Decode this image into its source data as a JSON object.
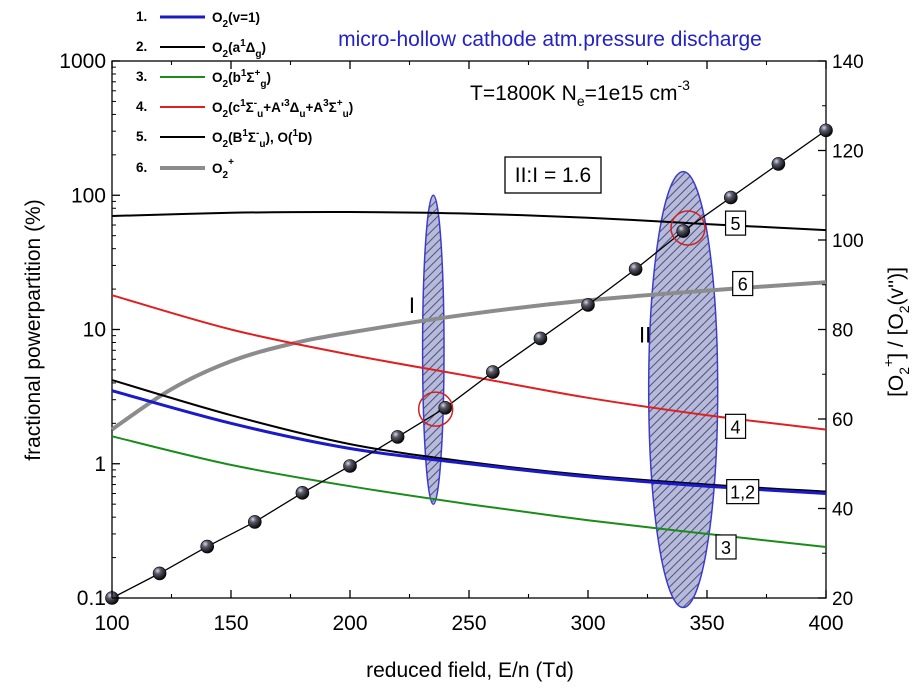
{
  "chart_data": {
    "type": "line",
    "title": "micro-hollow cathode atm.pressure discharge",
    "conditions": {
      "prefix": "T=1800K N",
      "sub": "e",
      "mid": "=1e15 cm",
      "sup": "-3"
    },
    "ratio_box": "II:I = 1.6",
    "xlabel": "reduced field, E/n (Td)",
    "ylabel_left": "fractional powerpartition (%)",
    "ylabel_right": "[O2+] / [O2(v'')]",
    "xlim": [
      100,
      400
    ],
    "ylim_left": [
      0.1,
      1000
    ],
    "ylim_right": [
      20,
      140
    ],
    "left_scale": "log",
    "grid": false,
    "x_ticks": [
      "100",
      "150",
      "200",
      "250",
      "300",
      "350",
      "400"
    ],
    "y_left_ticks": [
      "0.1",
      "1",
      "10",
      "100",
      "1000"
    ],
    "y_right_ticks": [
      "20",
      "40",
      "60",
      "80",
      "100",
      "120",
      "140"
    ],
    "legend_position": "top-left",
    "series": [
      {
        "id": "s1",
        "legend_num": "1.",
        "name": "O2(v=1)",
        "color": "#1a1ac8",
        "width": 3,
        "x": [
          100,
          150,
          200,
          250,
          300,
          350,
          400
        ],
        "y": [
          3.5,
          2.0,
          1.3,
          1.0,
          0.8,
          0.68,
          0.6
        ]
      },
      {
        "id": "s2",
        "legend_num": "2.",
        "name": "O2(a1Δg)",
        "color": "#000000",
        "width": 2,
        "x": [
          100,
          150,
          200,
          250,
          300,
          350,
          400
        ],
        "y": [
          3.5,
          2.0,
          1.3,
          1.0,
          0.8,
          0.69,
          0.61
        ]
      },
      {
        "id": "s3",
        "legend_num": "3.",
        "name": "O2(b1Σ+g)",
        "color": "#1a8c1a",
        "width": 2,
        "x": [
          100,
          150,
          200,
          250,
          300,
          350,
          400
        ],
        "y": [
          1.6,
          0.98,
          0.68,
          0.5,
          0.38,
          0.3,
          0.24
        ]
      },
      {
        "id": "s4",
        "legend_num": "4.",
        "name": "O2(c1Σ-u+A'3Δu+A3Σ+u)",
        "color": "#e02020",
        "width": 2,
        "x": [
          100,
          150,
          200,
          250,
          300,
          350,
          400
        ],
        "y": [
          18,
          10,
          6.5,
          4.5,
          3.1,
          2.3,
          1.8
        ]
      },
      {
        "id": "s5a",
        "legend_num": "5.",
        "name": "O2(B1Σ-u), O(1D)",
        "color": "#000000",
        "width": 2,
        "x": [
          100,
          150,
          200,
          250,
          300,
          350,
          400
        ],
        "y": [
          70,
          74,
          75,
          73,
          68,
          61,
          55
        ]
      },
      {
        "id": "s5b",
        "legend_num": "",
        "name": "",
        "color": "#000000",
        "width": 2,
        "x": [
          100,
          150,
          200,
          250,
          300,
          350,
          400
        ],
        "y": [
          4.2,
          2.3,
          1.4,
          1.03,
          0.82,
          0.7,
          0.62
        ]
      },
      {
        "id": "s6",
        "legend_num": "6.",
        "name": "O2+",
        "color": "#8c8c8c",
        "width": 4,
        "x": [
          100,
          125,
          150,
          175,
          200,
          250,
          300,
          350,
          400
        ],
        "y": [
          1.8,
          3.6,
          5.8,
          7.8,
          9.5,
          13,
          16.5,
          19.5,
          22.5
        ]
      }
    ],
    "ratio_points": {
      "axis": "right",
      "x": [
        100,
        120,
        140,
        160,
        180,
        200,
        220,
        240,
        260,
        280,
        300,
        320,
        340,
        360,
        380,
        400
      ],
      "y": [
        20,
        25.5,
        31.5,
        37,
        43.5,
        49.5,
        56,
        62.5,
        70.5,
        78,
        85.5,
        93.5,
        102,
        109.5,
        117,
        124.5
      ]
    },
    "curve_labels": [
      {
        "id": "lbl5",
        "text": "5",
        "x": 362,
        "y": 62
      },
      {
        "id": "lbl6",
        "text": "6",
        "x": 365,
        "y": 22
      },
      {
        "id": "lbl4",
        "text": "4",
        "x": 362,
        "y": 1.9
      },
      {
        "id": "lbl12",
        "text": "1,2",
        "x": 365,
        "y": 0.62
      },
      {
        "id": "lbl3",
        "text": "3",
        "x": 358,
        "y": 0.24
      }
    ],
    "regions": [
      {
        "id": "region-I",
        "label": "I",
        "cx": 235,
        "label_x": 226,
        "label_y": 15,
        "y_top": 100,
        "y_bottom": 0.5,
        "half_width": 4.5
      },
      {
        "id": "region-II",
        "label": "II",
        "cx": 340,
        "label_x": 324,
        "label_y": 9,
        "y_top": 150,
        "y_bottom": 0.085,
        "half_width": 14.5
      }
    ],
    "highlights": [
      {
        "x": 236,
        "y": 2.55
      },
      {
        "x": 342,
        "y": 57
      }
    ]
  }
}
